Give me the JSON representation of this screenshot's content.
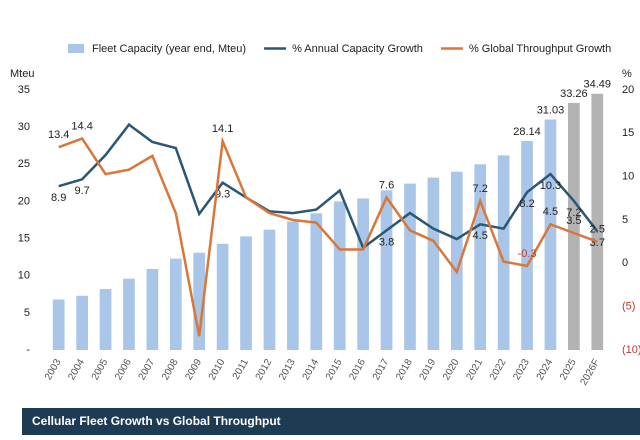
{
  "chart_data": {
    "type": "bar-line",
    "footer": "Cellular Fleet Growth vs Global Throughput",
    "ylabel": "Mteu",
    "y2label": "%",
    "categories": [
      "2003",
      "2004",
      "2005",
      "2006",
      "2007",
      "2008",
      "2009",
      "2010",
      "2011",
      "2012",
      "2013",
      "2014",
      "2015",
      "2016",
      "2017",
      "2018",
      "2019",
      "2020",
      "2021",
      "2022",
      "2023",
      "2024",
      "2025",
      "2026F"
    ],
    "ylim": [
      0,
      35
    ],
    "yticks": [
      {
        "value": 0,
        "label": "-"
      },
      5,
      10,
      15,
      20,
      25,
      30,
      35
    ],
    "y2lim": [
      -10,
      20
    ],
    "y2ticks": [
      {
        "value": -10,
        "label": "(10)"
      },
      {
        "value": -5,
        "label": "(5)"
      },
      0,
      5,
      10,
      15,
      20
    ],
    "series": [
      {
        "name": "Fleet Capacity (year end, Mteu)",
        "kind": "bar",
        "color": "#a9c6e8",
        "colors": [
          "#a9c6e8",
          "#a9c6e8",
          "#a9c6e8",
          "#a9c6e8",
          "#a9c6e8",
          "#a9c6e8",
          "#a9c6e8",
          "#a9c6e8",
          "#a9c6e8",
          "#a9c6e8",
          "#a9c6e8",
          "#a9c6e8",
          "#a9c6e8",
          "#a9c6e8",
          "#a9c6e8",
          "#a9c6e8",
          "#a9c6e8",
          "#a9c6e8",
          "#a9c6e8",
          "#a9c6e8",
          "#a9c6e8",
          "#a9c6e8",
          "#b3b3b3",
          "#b3b3b3"
        ],
        "values": [
          6.8,
          7.3,
          8.2,
          9.6,
          10.9,
          12.3,
          13.1,
          14.3,
          15.3,
          16.2,
          17.3,
          18.4,
          20.0,
          20.4,
          21.5,
          22.4,
          23.2,
          24.0,
          25.0,
          26.2,
          28.14,
          31.03,
          33.26,
          34.49
        ],
        "value_labels": [
          null,
          null,
          null,
          null,
          null,
          null,
          null,
          null,
          null,
          null,
          null,
          null,
          null,
          null,
          null,
          null,
          null,
          null,
          null,
          null,
          "28.14",
          "31.03",
          "33.26",
          "34.49"
        ]
      },
      {
        "name": "% Annual Capacity Growth",
        "kind": "line",
        "axis": "y2",
        "color": "#2a5773",
        "values": [
          8.9,
          9.7,
          12.5,
          16.0,
          14.0,
          13.3,
          5.7,
          9.3,
          7.6,
          6.0,
          5.8,
          6.2,
          8.4,
          1.8,
          3.8,
          5.8,
          4.0,
          2.8,
          4.5,
          4.0,
          8.2,
          10.3,
          7.2,
          3.7
        ],
        "value_labels": [
          "8.9",
          "9.7",
          null,
          null,
          null,
          null,
          null,
          "9.3",
          null,
          null,
          null,
          null,
          null,
          null,
          "3.8",
          null,
          null,
          null,
          "4.5",
          null,
          "8.2",
          "10.3",
          "7.2",
          "3.7"
        ]
      },
      {
        "name": "% Global Throughput Growth",
        "kind": "line",
        "axis": "y2",
        "color": "#d9773a",
        "values": [
          13.4,
          14.4,
          10.3,
          10.8,
          12.4,
          5.8,
          -8.4,
          14.1,
          7.6,
          5.8,
          5.0,
          4.7,
          1.6,
          1.6,
          7.6,
          3.8,
          2.6,
          -1.0,
          7.2,
          0.2,
          -0.3,
          4.5,
          3.5,
          2.5
        ],
        "value_labels": [
          "13.4",
          "14.4",
          null,
          null,
          null,
          null,
          null,
          "14.1",
          null,
          null,
          null,
          null,
          null,
          null,
          "7.6",
          null,
          null,
          null,
          "7.2",
          null,
          "-0.3",
          "4.5",
          "3.5",
          "2.5"
        ]
      }
    ]
  }
}
